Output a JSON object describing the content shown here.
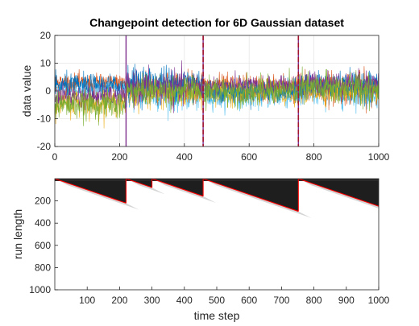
{
  "chart_data": [
    {
      "type": "line",
      "title": "Changepoint detection for 6D Gaussian dataset",
      "xlabel": "",
      "ylabel": "data value",
      "xlim": [
        0,
        1000
      ],
      "ylim": [
        -20,
        20
      ],
      "xticks": [
        0,
        200,
        400,
        600,
        800,
        1000
      ],
      "yticks": [
        -20,
        -10,
        0,
        10,
        20
      ],
      "grid": true,
      "segments": [
        {
          "start": 0,
          "end": 220,
          "means": [
            2,
            3,
            -4,
            -2,
            1,
            -5
          ],
          "stds": [
            2.0,
            1.5,
            2.5,
            2.0,
            1.5,
            2.5
          ]
        },
        {
          "start": 220,
          "end": 458,
          "means": [
            3,
            2,
            -1,
            1,
            -2,
            0
          ],
          "stds": [
            3.0,
            2.5,
            2.5,
            3.0,
            2.5,
            2.5
          ]
        },
        {
          "start": 458,
          "end": 752,
          "means": [
            0,
            1,
            -1,
            2,
            -2,
            0
          ],
          "stds": [
            2.0,
            2.5,
            2.0,
            1.5,
            2.0,
            2.5
          ]
        },
        {
          "start": 752,
          "end": 1000,
          "means": [
            2,
            1,
            0,
            3,
            -1,
            1
          ],
          "stds": [
            2.5,
            3.0,
            2.0,
            2.0,
            2.5,
            3.0
          ]
        }
      ],
      "series": [
        {
          "color": "#0072bd"
        },
        {
          "color": "#d95319"
        },
        {
          "color": "#edb120"
        },
        {
          "color": "#7e2f8e"
        },
        {
          "color": "#4dbeee"
        },
        {
          "color": "#77ac30"
        }
      ],
      "changepoints_true": [
        220,
        458,
        752
      ],
      "changepoints_detected": [
        458,
        752
      ],
      "true_cp_color": "#7e2f8e",
      "detected_cp_color": "#a2142f"
    },
    {
      "type": "heatmap",
      "title": "",
      "xlabel": "time step",
      "ylabel": "run length",
      "xlim": [
        0,
        1000
      ],
      "ylim": [
        1000,
        0
      ],
      "xticks": [
        100,
        200,
        300,
        400,
        500,
        600,
        700,
        800,
        900,
        1000
      ],
      "yticks": [
        200,
        400,
        600,
        800,
        1000
      ],
      "colormap": "gray",
      "map_run_length_changepoints": [
        220,
        300,
        458,
        752
      ],
      "map_run_length_color": "#ff0000"
    }
  ]
}
